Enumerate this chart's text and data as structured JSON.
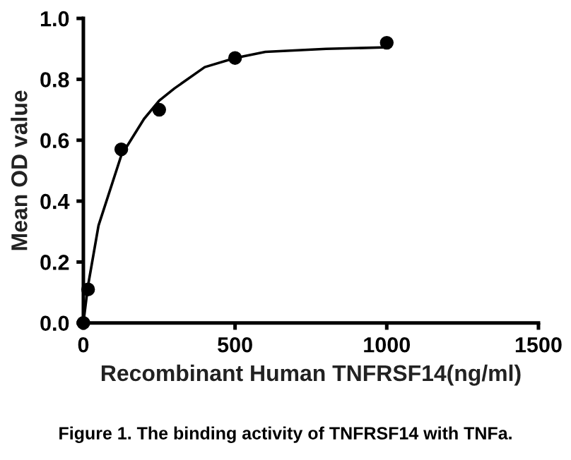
{
  "chart_data": {
    "type": "scatter",
    "xlabel": "Recombinant Human TNFRSF14(ng/ml)",
    "ylabel": "Mean OD value",
    "annotations": [
      "Figure 1. The binding activity of TNFRSF14 with TNFa."
    ],
    "series": [
      {
        "color": "#000000",
        "marker": "circle",
        "x": [
          0,
          15.6,
          125,
          250,
          500,
          1000
        ],
        "values": [
          0,
          0.11,
          0.57,
          0.7,
          0.87,
          0.92
        ]
      },
      {
        "type": "line",
        "color": "#000000",
        "x": [
          0,
          15,
          50,
          125,
          200,
          250,
          300,
          400,
          500,
          600,
          800,
          1000
        ],
        "values": [
          0,
          0.12,
          0.32,
          0.55,
          0.67,
          0.73,
          0.77,
          0.84,
          0.87,
          0.89,
          0.9,
          0.905
        ]
      }
    ],
    "xlim": [
      0,
      1500
    ],
    "xticks": [
      0,
      500,
      1000,
      1500
    ],
    "ylim": [
      0,
      1.0
    ],
    "yticks": [
      {
        "value": 0,
        "label": "0.0"
      },
      0.2,
      0.4,
      0.6,
      0.8,
      {
        "value": 1,
        "label": "1.0"
      }
    ],
    "grid": false,
    "legend": false
  }
}
